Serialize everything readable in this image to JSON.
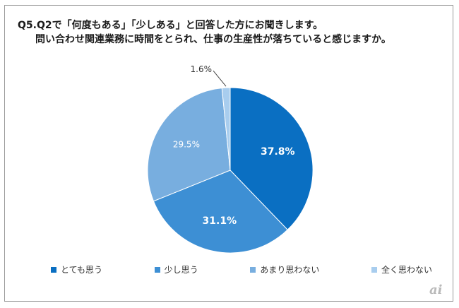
{
  "title": {
    "line1": "Q5.Q2で「何度もある」「少しある」と回答した方にお聞きします。",
    "line2": "問い合わせ関連業務に時間をとられ、仕事の生産性が落ちていると感じますか。"
  },
  "chart_data": {
    "type": "pie",
    "title": "Q5.Q2で「何度もある」「少しある」と回答した方にお聞きします。問い合わせ関連業務に時間をとられ、仕事の生産性が落ちていると感じますか。",
    "start": "12 o'clock, clockwise",
    "legend_position": "bottom",
    "slices": [
      {
        "label": "とても思う",
        "value": 37.8,
        "display": "37.8%",
        "color": "#0a6fc2"
      },
      {
        "label": "少し思う",
        "value": 31.1,
        "display": "31.1%",
        "color": "#3d8fd4"
      },
      {
        "label": "あまり思わない",
        "value": 29.5,
        "display": "29.5%",
        "color": "#78aedf"
      },
      {
        "label": "全く思わない",
        "value": 1.6,
        "display": "1.6%",
        "color": "#a8cdee"
      }
    ]
  },
  "watermark": {
    "icon": "ai-logo-icon"
  }
}
